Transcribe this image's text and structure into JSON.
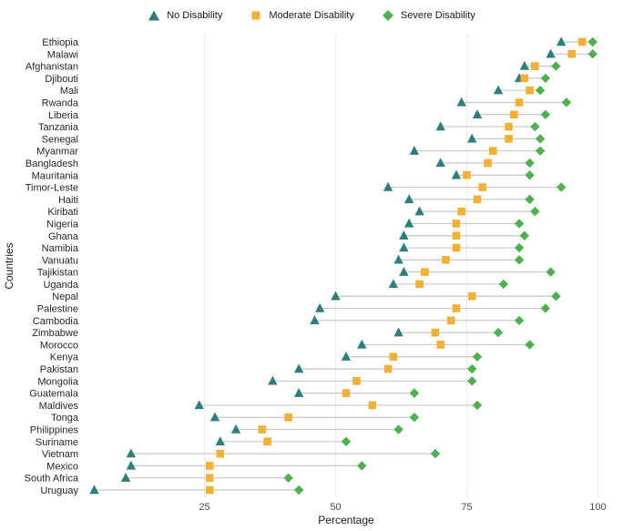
{
  "legend": {
    "items": [
      {
        "label": "No Disability",
        "marker": "triangle",
        "color": "#2f7e7e"
      },
      {
        "label": "Moderate Disability",
        "marker": "square",
        "color": "#f2b134"
      },
      {
        "label": "Severe Disability",
        "marker": "diamond",
        "color": "#4db14d"
      }
    ]
  },
  "chart_data": {
    "type": "scatter",
    "variant": "dumbbell-dot-plot",
    "title": "",
    "xlabel": "Percentage",
    "ylabel": "Countries",
    "xlim": [
      2,
      102
    ],
    "xticks": [
      25,
      50,
      75,
      100
    ],
    "grid": "vertical-major",
    "grid_color": "#ececec",
    "connector_color": "#c8c8c8",
    "legend_position": "top",
    "categories": [
      "Ethiopia",
      "Malawi",
      "Afghanistan",
      "Djibouti",
      "Mali",
      "Rwanda",
      "Liberia",
      "Tanzania",
      "Senegal",
      "Myanmar",
      "Bangladesh",
      "Mauritania",
      "Timor-Leste",
      "Haiti",
      "Kiribati",
      "Nigeria",
      "Ghana",
      "Namibia",
      "Vanuatu",
      "Tajikistan",
      "Uganda",
      "Nepal",
      "Palestine",
      "Cambodia",
      "Zimbabwe",
      "Morocco",
      "Kenya",
      "Pakistan",
      "Mongolia",
      "Guatemala",
      "Maldives",
      "Tonga",
      "Philippines",
      "Suriname",
      "Vietnam",
      "Mexico",
      "South Africa",
      "Uruguay"
    ],
    "series": [
      {
        "name": "No Disability",
        "marker": "triangle",
        "color": "#2f7e7e",
        "values": [
          93,
          91,
          86,
          85,
          81,
          74,
          77,
          70,
          76,
          65,
          70,
          73,
          60,
          64,
          66,
          64,
          63,
          63,
          62,
          63,
          61,
          50,
          47,
          46,
          62,
          55,
          52,
          43,
          38,
          43,
          24,
          27,
          31,
          28,
          11,
          11,
          10,
          4
        ]
      },
      {
        "name": "Moderate Disability",
        "marker": "square",
        "color": "#f2b134",
        "values": [
          97,
          95,
          88,
          86,
          87,
          85,
          84,
          83,
          83,
          80,
          79,
          75,
          78,
          77,
          74,
          73,
          73,
          73,
          71,
          67,
          66,
          76,
          73,
          72,
          69,
          70,
          61,
          60,
          54,
          52,
          57,
          41,
          36,
          37,
          28,
          26,
          26,
          26
        ]
      },
      {
        "name": "Severe Disability",
        "marker": "diamond",
        "color": "#4db14d",
        "values": [
          99,
          99,
          92,
          90,
          89,
          94,
          90,
          88,
          89,
          89,
          87,
          87,
          93,
          87,
          88,
          85,
          86,
          85,
          85,
          91,
          82,
          92,
          90,
          85,
          81,
          87,
          77,
          76,
          76,
          65,
          77,
          65,
          62,
          52,
          69,
          55,
          41,
          43
        ]
      }
    ]
  }
}
